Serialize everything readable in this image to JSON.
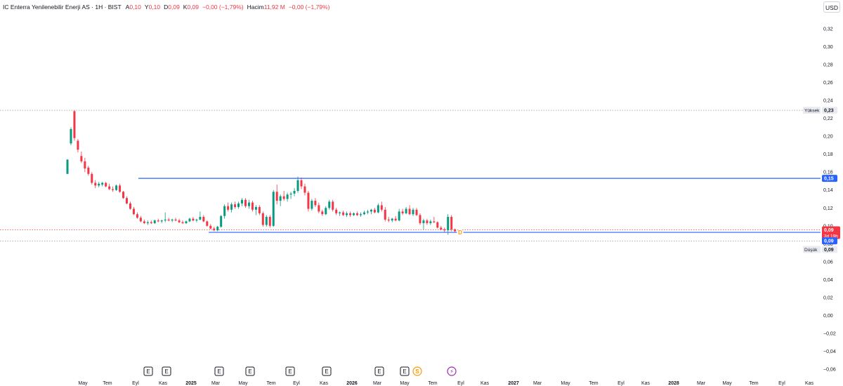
{
  "legend": {
    "title": "IC Enterra Yenilenebilir Enerji AS · 1H · BIST",
    "open_label": "A",
    "open_value": "0,10",
    "high_label": "Y",
    "high_value": "0,10",
    "low_label": "D",
    "low_value": "0,09",
    "close_label": "K",
    "close_value": "0,09",
    "change": "−0,00 (−1,79%)",
    "volume_label": "Hacim",
    "volume_value": "11,92 M",
    "volume_change": "−0,00 (−1,79%)"
  },
  "currency_button": "USD",
  "colors": {
    "up": "#089981",
    "down": "#f23645",
    "line": "#2962ff",
    "dotted": "#9598a1",
    "price_badge": "#f23645",
    "line_badge": "#2962ff",
    "dividend": "#ff9800",
    "split": "#9c27b0"
  },
  "price_axis": {
    "ticks": [
      "0,32",
      "0,30",
      "0,28",
      "0,26",
      "0,24",
      "0,22",
      "0,20",
      "0,18",
      "0,16",
      "0,14",
      "0,12",
      "0,10",
      "0,08",
      "0,06",
      "0,04",
      "0,02",
      "0,00",
      "−0,02",
      "−0,04",
      "−0,06"
    ],
    "high_label": "Yüksek",
    "high_value": "0,23",
    "low_label": "Düşük",
    "low_value": "0,09",
    "resistance_value": "0,15",
    "last_price": "0,09",
    "countdown": "3d 19h",
    "support_value": "0,09"
  },
  "time_axis": {
    "ticks": [
      "May",
      "Tem",
      "Eyl",
      "Kas",
      "2025",
      "Mar",
      "May",
      "Tem",
      "Eyl",
      "Kas",
      "2026",
      "Mar",
      "May",
      "Tem",
      "Eyl",
      "Kas",
      "2027",
      "Mar",
      "May",
      "Tem",
      "Eyl",
      "Kas",
      "2028",
      "Mar",
      "May",
      "Tem",
      "Eyl",
      "Kas"
    ]
  },
  "events": [
    {
      "type": "earnings",
      "label": "E"
    },
    {
      "type": "earnings",
      "label": "E"
    },
    {
      "type": "earnings",
      "label": "E"
    },
    {
      "type": "earnings",
      "label": "E"
    },
    {
      "type": "earnings",
      "label": "E"
    },
    {
      "type": "earnings",
      "label": "E"
    },
    {
      "type": "earnings",
      "label": "E"
    },
    {
      "type": "earnings",
      "label": "E"
    },
    {
      "type": "dividend",
      "label": "S"
    },
    {
      "type": "split",
      "label": "⚡"
    }
  ],
  "marker_d": "D",
  "chart_data": {
    "type": "candlestick",
    "y_range": [
      -0.06,
      0.32
    ],
    "resistance_level": 0.153,
    "support_level": 0.0935,
    "session_high": 0.229,
    "session_low": 0.088,
    "ohlc": [
      [
        0.158,
        0.174,
        0.158,
        0.174
      ],
      [
        0.192,
        0.21,
        0.19,
        0.208
      ],
      [
        0.228,
        0.229,
        0.195,
        0.198
      ],
      [
        0.195,
        0.197,
        0.182,
        0.185
      ],
      [
        0.178,
        0.183,
        0.17,
        0.172
      ],
      [
        0.172,
        0.176,
        0.16,
        0.164
      ],
      [
        0.165,
        0.167,
        0.156,
        0.158
      ],
      [
        0.158,
        0.16,
        0.146,
        0.148
      ],
      [
        0.148,
        0.151,
        0.142,
        0.145
      ],
      [
        0.145,
        0.149,
        0.143,
        0.147
      ],
      [
        0.146,
        0.149,
        0.144,
        0.148
      ],
      [
        0.148,
        0.149,
        0.143,
        0.144
      ],
      [
        0.144,
        0.147,
        0.14,
        0.141
      ],
      [
        0.141,
        0.144,
        0.138,
        0.14
      ],
      [
        0.14,
        0.146,
        0.139,
        0.145
      ],
      [
        0.145,
        0.147,
        0.137,
        0.138
      ],
      [
        0.138,
        0.139,
        0.13,
        0.131
      ],
      [
        0.131,
        0.133,
        0.124,
        0.125
      ],
      [
        0.125,
        0.127,
        0.118,
        0.119
      ],
      [
        0.119,
        0.121,
        0.112,
        0.113
      ],
      [
        0.113,
        0.115,
        0.108,
        0.109
      ],
      [
        0.109,
        0.111,
        0.104,
        0.105
      ],
      [
        0.105,
        0.107,
        0.102,
        0.103
      ],
      [
        0.103,
        0.106,
        0.101,
        0.104
      ],
      [
        0.104,
        0.106,
        0.102,
        0.103
      ],
      [
        0.103,
        0.107,
        0.102,
        0.106
      ],
      [
        0.106,
        0.108,
        0.104,
        0.105
      ],
      [
        0.105,
        0.107,
        0.103,
        0.106
      ],
      [
        0.106,
        0.115,
        0.104,
        0.107
      ],
      [
        0.107,
        0.109,
        0.105,
        0.106
      ],
      [
        0.106,
        0.108,
        0.104,
        0.107
      ],
      [
        0.107,
        0.109,
        0.105,
        0.106
      ],
      [
        0.106,
        0.108,
        0.103,
        0.104
      ],
      [
        0.104,
        0.106,
        0.102,
        0.103
      ],
      [
        0.103,
        0.106,
        0.102,
        0.105
      ],
      [
        0.105,
        0.109,
        0.104,
        0.108
      ],
      [
        0.108,
        0.11,
        0.105,
        0.106
      ],
      [
        0.106,
        0.108,
        0.104,
        0.107
      ],
      [
        0.107,
        0.116,
        0.106,
        0.11
      ],
      [
        0.11,
        0.112,
        0.104,
        0.105
      ],
      [
        0.105,
        0.106,
        0.099,
        0.1
      ],
      [
        0.1,
        0.102,
        0.096,
        0.097
      ],
      [
        0.097,
        0.099,
        0.094,
        0.095
      ],
      [
        0.095,
        0.1,
        0.094,
        0.099
      ],
      [
        0.099,
        0.112,
        0.098,
        0.111
      ],
      [
        0.111,
        0.124,
        0.108,
        0.122
      ],
      [
        0.122,
        0.126,
        0.116,
        0.118
      ],
      [
        0.118,
        0.126,
        0.115,
        0.124
      ],
      [
        0.124,
        0.127,
        0.119,
        0.121
      ],
      [
        0.121,
        0.127,
        0.119,
        0.125
      ],
      [
        0.125,
        0.131,
        0.122,
        0.129
      ],
      [
        0.129,
        0.131,
        0.12,
        0.122
      ],
      [
        0.122,
        0.129,
        0.119,
        0.126
      ],
      [
        0.126,
        0.128,
        0.116,
        0.118
      ],
      [
        0.118,
        0.123,
        0.112,
        0.121
      ],
      [
        0.121,
        0.123,
        0.112,
        0.114
      ],
      [
        0.114,
        0.116,
        0.099,
        0.101
      ],
      [
        0.101,
        0.112,
        0.099,
        0.11
      ],
      [
        0.11,
        0.112,
        0.098,
        0.1
      ],
      [
        0.1,
        0.14,
        0.099,
        0.138
      ],
      [
        0.138,
        0.146,
        0.124,
        0.128
      ],
      [
        0.128,
        0.135,
        0.122,
        0.133
      ],
      [
        0.133,
        0.139,
        0.128,
        0.13
      ],
      [
        0.13,
        0.137,
        0.127,
        0.135
      ],
      [
        0.135,
        0.138,
        0.13,
        0.136
      ],
      [
        0.136,
        0.142,
        0.133,
        0.139
      ],
      [
        0.139,
        0.155,
        0.137,
        0.151
      ],
      [
        0.151,
        0.154,
        0.141,
        0.144
      ],
      [
        0.144,
        0.147,
        0.134,
        0.137
      ],
      [
        0.137,
        0.139,
        0.116,
        0.119
      ],
      [
        0.119,
        0.13,
        0.117,
        0.128
      ],
      [
        0.128,
        0.131,
        0.121,
        0.123
      ],
      [
        0.123,
        0.126,
        0.114,
        0.116
      ],
      [
        0.116,
        0.118,
        0.111,
        0.113
      ],
      [
        0.113,
        0.122,
        0.112,
        0.12
      ],
      [
        0.12,
        0.129,
        0.118,
        0.127
      ],
      [
        0.127,
        0.129,
        0.116,
        0.118
      ],
      [
        0.118,
        0.12,
        0.112,
        0.114
      ],
      [
        0.114,
        0.116,
        0.111,
        0.115
      ],
      [
        0.115,
        0.117,
        0.111,
        0.112
      ],
      [
        0.112,
        0.116,
        0.11,
        0.114
      ],
      [
        0.114,
        0.116,
        0.11,
        0.112
      ],
      [
        0.112,
        0.115,
        0.111,
        0.114
      ],
      [
        0.114,
        0.116,
        0.111,
        0.112
      ],
      [
        0.112,
        0.115,
        0.11,
        0.113
      ],
      [
        0.113,
        0.117,
        0.112,
        0.115
      ],
      [
        0.115,
        0.118,
        0.113,
        0.116
      ],
      [
        0.116,
        0.119,
        0.113,
        0.118
      ],
      [
        0.118,
        0.12,
        0.114,
        0.115
      ],
      [
        0.115,
        0.125,
        0.114,
        0.123
      ],
      [
        0.123,
        0.127,
        0.116,
        0.118
      ],
      [
        0.118,
        0.121,
        0.105,
        0.107
      ],
      [
        0.107,
        0.11,
        0.104,
        0.106
      ],
      [
        0.106,
        0.109,
        0.104,
        0.108
      ],
      [
        0.108,
        0.111,
        0.105,
        0.106
      ],
      [
        0.106,
        0.119,
        0.105,
        0.116
      ],
      [
        0.116,
        0.119,
        0.112,
        0.114
      ],
      [
        0.114,
        0.121,
        0.113,
        0.119
      ],
      [
        0.119,
        0.123,
        0.112,
        0.113
      ],
      [
        0.113,
        0.12,
        0.111,
        0.118
      ],
      [
        0.118,
        0.12,
        0.111,
        0.112
      ],
      [
        0.112,
        0.114,
        0.101,
        0.103
      ],
      [
        0.103,
        0.108,
        0.096,
        0.106
      ],
      [
        0.106,
        0.108,
        0.101,
        0.103
      ],
      [
        0.103,
        0.107,
        0.101,
        0.105
      ],
      [
        0.105,
        0.11,
        0.103,
        0.104
      ],
      [
        0.104,
        0.105,
        0.097,
        0.098
      ],
      [
        0.098,
        0.1,
        0.095,
        0.096
      ],
      [
        0.096,
        0.098,
        0.093,
        0.095
      ],
      [
        0.095,
        0.113,
        0.09,
        0.11
      ],
      [
        0.11,
        0.112,
        0.094,
        0.096
      ],
      [
        0.096,
        0.097,
        0.093,
        0.094
      ]
    ]
  }
}
